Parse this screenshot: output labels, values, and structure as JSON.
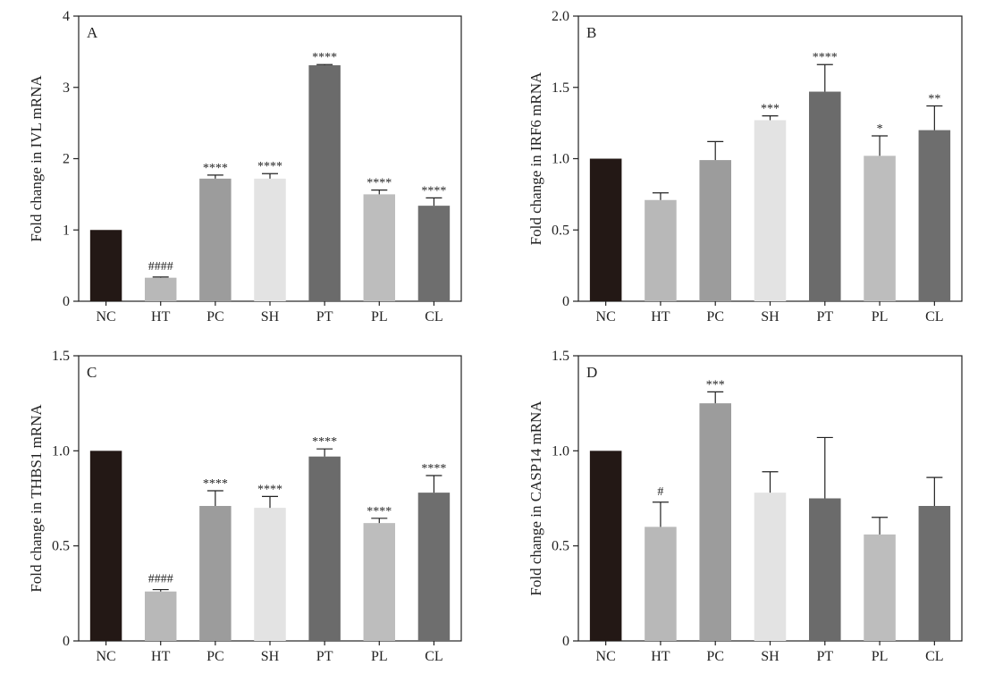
{
  "colors": {
    "NC": "#231815",
    "HT": "#b8b8b8",
    "PC": "#9c9c9c",
    "SH": "#e3e3e3",
    "PT": "#6b6b6b",
    "PL": "#bdbdbd",
    "CL": "#6e6e6e"
  },
  "chart_data": [
    {
      "type": "bar",
      "panel": "A",
      "ylabel": "Fold change in IVL mRNA",
      "ylim": [
        0,
        4
      ],
      "yticks": [
        0,
        1,
        2,
        3,
        4
      ],
      "ytick_labels": [
        "0",
        "1",
        "2",
        "3",
        "4"
      ],
      "categories": [
        "NC",
        "HT",
        "PC",
        "SH",
        "PT",
        "PL",
        "CL"
      ],
      "values": [
        1.0,
        0.33,
        1.72,
        1.72,
        3.31,
        1.5,
        1.34
      ],
      "errors": [
        0,
        0.01,
        0.05,
        0.07,
        0.01,
        0.06,
        0.11
      ],
      "annotations": [
        "",
        "####",
        "****",
        "****",
        "****",
        "****",
        "****"
      ]
    },
    {
      "type": "bar",
      "panel": "B",
      "ylabel": "Fold change in IRF6 mRNA",
      "ylim": [
        0,
        2
      ],
      "yticks": [
        0,
        0.5,
        1,
        1.5,
        2
      ],
      "ytick_labels": [
        "0",
        "0.5",
        "1.0",
        "1.5",
        "2.0"
      ],
      "categories": [
        "NC",
        "HT",
        "PC",
        "SH",
        "PT",
        "PL",
        "CL"
      ],
      "values": [
        1.0,
        0.71,
        0.99,
        1.27,
        1.47,
        1.02,
        1.2
      ],
      "errors": [
        0,
        0.05,
        0.13,
        0.03,
        0.19,
        0.14,
        0.17
      ],
      "annotations": [
        "",
        "",
        "",
        "***",
        "****",
        "*",
        "**"
      ]
    },
    {
      "type": "bar",
      "panel": "C",
      "ylabel": "Fold change in THBS1 mRNA",
      "ylim": [
        0,
        1.5
      ],
      "yticks": [
        0,
        0.5,
        1,
        1.5
      ],
      "ytick_labels": [
        "0",
        "0.5",
        "1.0",
        "1.5"
      ],
      "categories": [
        "NC",
        "HT",
        "PC",
        "SH",
        "PT",
        "PL",
        "CL"
      ],
      "values": [
        1.0,
        0.26,
        0.71,
        0.7,
        0.97,
        0.62,
        0.78
      ],
      "errors": [
        0,
        0.01,
        0.08,
        0.06,
        0.04,
        0.025,
        0.09
      ],
      "annotations": [
        "",
        "####",
        "****",
        "****",
        "****",
        "****",
        "****"
      ]
    },
    {
      "type": "bar",
      "panel": "D",
      "ylabel": "Fold change in CASP14 mRNA",
      "ylim": [
        0,
        1.5
      ],
      "yticks": [
        0,
        0.5,
        1,
        1.5
      ],
      "ytick_labels": [
        "0",
        "0.5",
        "1.0",
        "1.5"
      ],
      "categories": [
        "NC",
        "HT",
        "PC",
        "SH",
        "PT",
        "PL",
        "CL"
      ],
      "values": [
        1.0,
        0.6,
        1.25,
        0.78,
        0.75,
        0.56,
        0.71
      ],
      "errors": [
        0,
        0.13,
        0.06,
        0.11,
        0.32,
        0.09,
        0.15
      ],
      "annotations": [
        "",
        "#",
        "***",
        "",
        "",
        "",
        ""
      ]
    }
  ]
}
